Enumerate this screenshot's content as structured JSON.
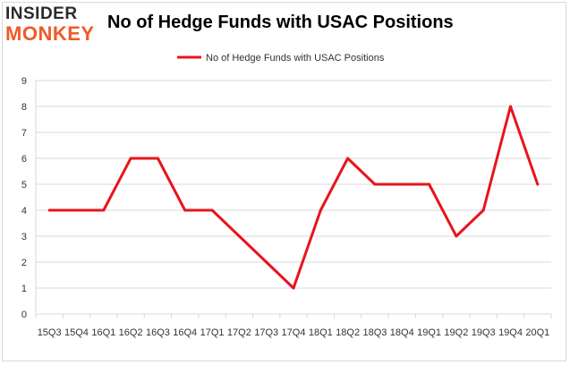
{
  "header": {
    "logo_top": "INSIDER",
    "logo_bottom": "MONKEY",
    "title": "No of Hedge Funds with USAC Positions"
  },
  "colors": {
    "line": "#e8141c",
    "grid": "#d9d9d9",
    "logo_accent": "#f05a28"
  },
  "chart_data": {
    "type": "line",
    "title": "No of Hedge Funds with USAC Positions",
    "xlabel": "",
    "ylabel": "",
    "categories": [
      "15Q3",
      "15Q4",
      "16Q1",
      "16Q2",
      "16Q3",
      "16Q4",
      "17Q1",
      "17Q2",
      "17Q3",
      "17Q4",
      "18Q1",
      "18Q2",
      "18Q3",
      "18Q4",
      "19Q1",
      "19Q2",
      "19Q3",
      "19Q4",
      "20Q1"
    ],
    "series": [
      {
        "name": "No of Hedge Funds with USAC Positions",
        "values": [
          4,
          4,
          4,
          6,
          6,
          4,
          4,
          3,
          2,
          1,
          4,
          6,
          5,
          5,
          5,
          3,
          4,
          8,
          5
        ]
      }
    ],
    "ylim": [
      0,
      9
    ],
    "yticks": [
      0,
      1,
      2,
      3,
      4,
      5,
      6,
      7,
      8,
      9
    ],
    "grid": true,
    "legend": "top-center"
  }
}
